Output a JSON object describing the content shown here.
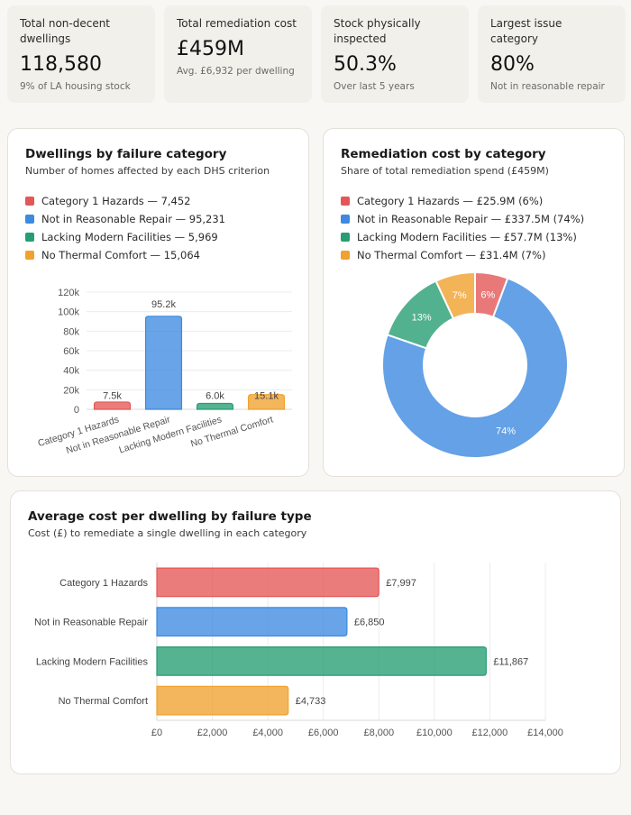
{
  "kpis": [
    {
      "label": "Total non-decent dwellings",
      "value": "118,580",
      "sub": "9% of LA housing stock"
    },
    {
      "label": "Total remediation cost",
      "value": "£459M",
      "sub": "Avg. £6,932 per dwelling"
    },
    {
      "label": "Stock physically inspected",
      "value": "50.3%",
      "sub": "Over last 5 years"
    },
    {
      "label": "Largest issue category",
      "value": "80%",
      "sub": "Not in reasonable repair"
    }
  ],
  "colors": {
    "cat1": "#e45757",
    "repair": "#3d8ae0",
    "facilities": "#279d73",
    "thermal": "#f0a12e"
  },
  "dwellings_card": {
    "title": "Dwellings by failure category",
    "subtitle": "Number of homes affected by each DHS criterion",
    "legend": [
      "Category 1 Hazards — 7,452",
      "Not in Reasonable Repair — 95,231",
      "Lacking Modern Facilities — 5,969",
      "No Thermal Comfort — 15,064"
    ]
  },
  "cost_card": {
    "title": "Remediation cost by category",
    "subtitle": "Share of total remediation spend (£459M)",
    "legend": [
      "Category 1 Hazards — £25.9M (6%)",
      "Not in Reasonable Repair — £337.5M (74%)",
      "Lacking Modern Facilities — £57.7M (13%)",
      "No Thermal Comfort — £31.4M (7%)"
    ]
  },
  "avg_card": {
    "title": "Average cost per dwelling by failure type",
    "subtitle": "Cost (£) to remediate a single dwelling in each category"
  },
  "chart_data": [
    {
      "type": "bar",
      "title": "Dwellings by failure category",
      "categories": [
        "Category 1 Hazards",
        "Not in Reasonable Repair",
        "Lacking Modern Facilities",
        "No Thermal Comfort"
      ],
      "values": [
        7452,
        95231,
        5969,
        15064
      ],
      "data_labels": [
        "7.5k",
        "95.2k",
        "6.0k",
        "15.1k"
      ],
      "ylim": [
        0,
        120000
      ],
      "yticks": [
        0,
        20000,
        40000,
        60000,
        80000,
        100000,
        120000
      ],
      "ytick_labels": [
        "0",
        "20k",
        "40k",
        "60k",
        "80k",
        "100k",
        "120k"
      ],
      "xlabel": "",
      "ylabel": "",
      "grid": true
    },
    {
      "type": "pie",
      "title": "Remediation cost by category",
      "categories": [
        "Category 1 Hazards",
        "Not in Reasonable Repair",
        "Lacking Modern Facilities",
        "No Thermal Comfort"
      ],
      "values": [
        25.9,
        337.5,
        57.7,
        31.4
      ],
      "data_labels": [
        "6%",
        "74%",
        "13%",
        "7%"
      ],
      "donut": true
    },
    {
      "type": "bar",
      "orientation": "horizontal",
      "title": "Average cost per dwelling by failure type",
      "categories": [
        "Category 1 Hazards",
        "Not in Reasonable Repair",
        "Lacking Modern Facilities",
        "No Thermal Comfort"
      ],
      "values": [
        7997,
        6850,
        11867,
        4733
      ],
      "data_labels": [
        "£7,997",
        "£6,850",
        "£11,867",
        "£4,733"
      ],
      "xlim": [
        0,
        14000
      ],
      "xticks": [
        0,
        2000,
        4000,
        6000,
        8000,
        10000,
        12000,
        14000
      ],
      "xtick_labels": [
        "£0",
        "£2,000",
        "£4,000",
        "£6,000",
        "£8,000",
        "£10,000",
        "£12,000",
        "£14,000"
      ],
      "xlabel": "",
      "ylabel": "",
      "grid": true
    }
  ]
}
